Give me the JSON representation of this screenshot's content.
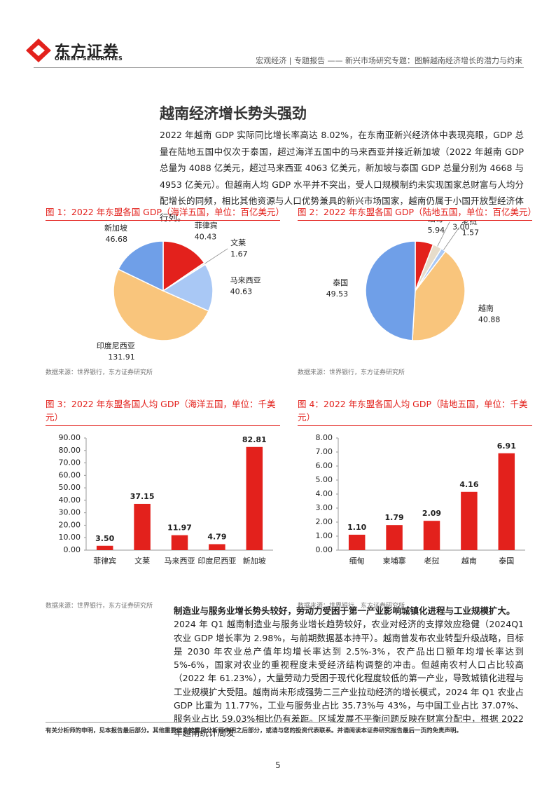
{
  "header": {
    "brand": "东方证券",
    "brand_en": "ORIENT SECURITIES",
    "breadcrumb": "宏观经济 | 专题报告 —— 新兴市场研究专题：图解越南经济增长的潜力与约束"
  },
  "section_title": "越南经济增长势头强劲",
  "paragraph_1": "2022 年越南 GDP 实际同比增长率高达 8.02%，在东南亚新兴经济体中表现亮眼，GDP 总量在陆地五国中仅次于泰国，超过海洋五国中的马来西亚并接近新加坡（2022 年越南 GDP 总量为 4088 亿美元，超过马来西亚 4063 亿美元，新加坡与泰国 GDP 总量分别为 4668 与 4953 亿美元）。但越南人均 GDP 水平并不突出，受人口规模制约未实现国家总财富与人均分配增长的同频，相比其他资源与人口优势兼具的新兴市场国家，越南仍属于小国开放型经济体行列。",
  "chart_data": [
    {
      "type": "pie",
      "title": "图 1：2022 年东盟各国 GDP（海洋五国，单位：百亿美元）",
      "categories": [
        "菲律宾",
        "文莱",
        "马来西亚",
        "印度尼西亚",
        "新加坡"
      ],
      "values": [
        40.43,
        1.67,
        40.63,
        131.91,
        46.68
      ],
      "value_labels": [
        "40.43",
        "1.67",
        "40.63",
        "131.91",
        "46.68"
      ],
      "colors": [
        "#e3211c",
        "#f2ece3",
        "#a9c8f5",
        "#f9c57c",
        "#6f9fe8"
      ],
      "source": "数据来源：世界银行，东方证券研究所"
    },
    {
      "type": "pie",
      "title": "图 2：2022 年东盟各国 GDP（陆地五国，单位：百亿美元）",
      "categories": [
        "缅甸",
        "柬埔寨",
        "老挝",
        "越南",
        "泰国"
      ],
      "values": [
        5.94,
        3.0,
        1.57,
        40.88,
        49.53
      ],
      "value_labels": [
        "5.94",
        "3.00",
        "1.57",
        "40.88",
        "49.53"
      ],
      "colors": [
        "#e3211c",
        "#e6dccb",
        "#a9c8f5",
        "#f9c57c",
        "#6f9fe8"
      ],
      "source": "数据来源：世界银行，东方证券研究所"
    },
    {
      "type": "bar",
      "title": "图 3：2022 年东盟各国人均 GDP（海洋五国，单位：千美元）",
      "categories": [
        "菲律宾",
        "文莱",
        "马来西亚",
        "印度尼西亚",
        "新加坡"
      ],
      "values": [
        3.5,
        37.15,
        11.97,
        4.79,
        82.81
      ],
      "value_labels": [
        "3.50",
        "37.15",
        "11.97",
        "4.79",
        "82.81"
      ],
      "color": "#e3211c",
      "ylim": [
        0,
        90
      ],
      "yticks": [
        {
          "value": 0,
          "label": "0.00"
        },
        {
          "value": 10,
          "label": "10.00"
        },
        {
          "value": 20,
          "label": "20.00"
        },
        {
          "value": 30,
          "label": "30.00"
        },
        {
          "value": 40,
          "label": "40.00"
        },
        {
          "value": 50,
          "label": "50.00"
        },
        {
          "value": 60,
          "label": "60.00"
        },
        {
          "value": 70,
          "label": "70.00"
        },
        {
          "value": 80,
          "label": "80.00"
        },
        {
          "value": 90,
          "label": "90.00"
        }
      ],
      "source": "数据来源：世界银行，东方证券研究所"
    },
    {
      "type": "bar",
      "title": "图 4：2022 年东盟各国人均 GDP（陆地五国，单位：千美元）",
      "categories": [
        "缅甸",
        "柬埔寨",
        "老挝",
        "越南",
        "泰国"
      ],
      "values": [
        1.1,
        1.79,
        2.09,
        4.16,
        6.91
      ],
      "value_labels": [
        "1.10",
        "1.79",
        "2.09",
        "4.16",
        "6.91"
      ],
      "color": "#e3211c",
      "ylim": [
        0,
        8
      ],
      "yticks": [
        {
          "value": 0,
          "label": "0.00"
        },
        {
          "value": 1,
          "label": "1.00"
        },
        {
          "value": 2,
          "label": "2.00"
        },
        {
          "value": 3,
          "label": "3.00"
        },
        {
          "value": 4,
          "label": "4.00"
        },
        {
          "value": 5,
          "label": "5.00"
        },
        {
          "value": 6,
          "label": "6.00"
        },
        {
          "value": 7,
          "label": "7.00"
        },
        {
          "value": 8,
          "label": "8.00"
        }
      ],
      "source": "数据来源：世界银行，东方证券研究所"
    }
  ],
  "paragraph_2": {
    "heading": "制造业与服务业增长势头较好，劳动力受困于第一产业影响城镇化进程与工业规模扩大。",
    "body": "2024 年 Q1 越南制造业与服务业增长趋势较好，农业对经济的支撑效应稳健（2024Q1 农业 GDP 增长率为 2.98%，与前期数据基本持平）。越南曾发布农业转型升级战略，目标是 2030 年农业总产值年均增长率达到 2.5%-3%，农产品出口额年均增长率达到 5%-6%，国家对农业的重视程度未受经济结构调整的冲击。但越南农村人口占比较高（2022 年 61.23%），大量劳动力受困于现代化程度较低的第一产业，导致城镇化进程与工业规模扩大受阻。越南尚未形成强势二三产业拉动经济的增长模式，2024 年 Q1 农业占 GDP 比重为 11.77%，工业与服务业占比 35.73%与 43%，与中国工业占比 37.07%、服务业占比 59.03%相比仍有差距。区域发展不平衡问题反映在财富分配中，根据 2022 年越南统计局发"
  },
  "footer": "有关分析师的申明，见本报告最后部分。其他重要信息披露见分析师申明之后部分，或请与您的投资代表联系。并请阅读本证券研究报告最后一页的免责声明。",
  "page_number": "5"
}
